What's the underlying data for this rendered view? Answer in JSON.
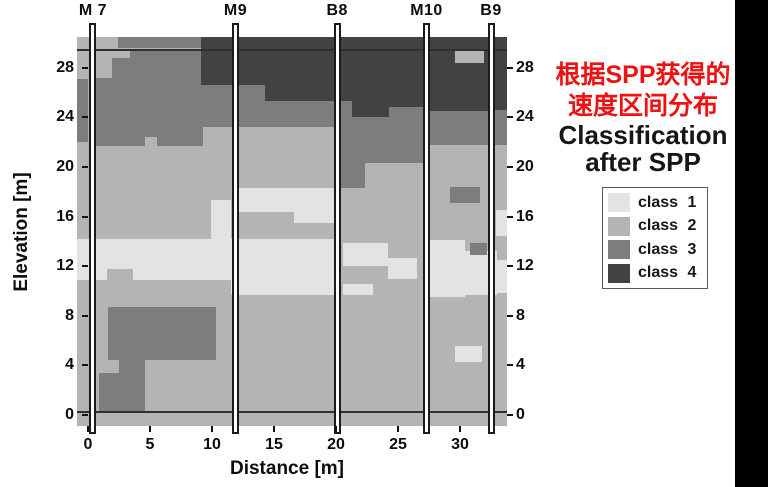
{
  "annotation": {
    "line1": "根据SPP获得的",
    "line2": "速度区间分布",
    "color": "#ee1111"
  },
  "legend": {
    "title_line1": "Classification",
    "title_line2": "after SPP",
    "items": [
      {
        "label": "class 1",
        "color": "#e3e3e3"
      },
      {
        "label": "class 2",
        "color": "#b4b4b4"
      },
      {
        "label": "class 3",
        "color": "#7d7d7d"
      },
      {
        "label": "class 4",
        "color": "#424242"
      }
    ]
  },
  "axes": {
    "xlabel": "Distance [m]",
    "ylabel": "Elevation [m]",
    "x_ticks": [
      0,
      5,
      10,
      15,
      20,
      25,
      30
    ],
    "y_ticks": [
      0,
      4,
      8,
      12,
      16,
      20,
      24,
      28
    ]
  },
  "chart_data": {
    "type": "heatmap",
    "title": "Classification after SPP",
    "xlabel": "Distance [m]",
    "ylabel": "Elevation [m]",
    "xlim": [
      -0.9,
      33.8
    ],
    "ylim": [
      -0.9,
      30.5
    ],
    "grid": false,
    "legend_position": "right",
    "classes": [
      {
        "id": 1,
        "label": "class 1",
        "color": "#e3e3e3"
      },
      {
        "id": 2,
        "label": "class 2",
        "color": "#b4b4b4"
      },
      {
        "id": 3,
        "label": "class 3",
        "color": "#7d7d7d"
      },
      {
        "id": 4,
        "label": "class 4",
        "color": "#424242"
      }
    ],
    "base_class": 2,
    "survey_lines_elev_m": [
      29.55,
      0.35
    ],
    "boreholes": [
      {
        "label": "M 7",
        "x_m": 0.4
      },
      {
        "label": "M9",
        "x_m": 11.9
      },
      {
        "label": "B8",
        "x_m": 20.1
      },
      {
        "label": "M10",
        "x_m": 27.3
      },
      {
        "label": "B9",
        "x_m": 32.5
      }
    ],
    "regions": [
      {
        "class": 3,
        "x": [
          -1.1,
          0.0
        ],
        "elev": [
          22.0,
          27.1
        ]
      },
      {
        "class": 3,
        "x": [
          0.6,
          9.3
        ],
        "elev": [
          21.7,
          29.5
        ]
      },
      {
        "class": 2,
        "x": [
          0.6,
          1.9
        ],
        "elev": [
          27.2,
          29.5
        ]
      },
      {
        "class": 2,
        "x": [
          1.9,
          3.4
        ],
        "elev": [
          28.8,
          29.5
        ]
      },
      {
        "class": 2,
        "x": [
          4.6,
          5.6
        ],
        "elev": [
          21.7,
          22.4
        ]
      },
      {
        "class": 3,
        "x": [
          9.3,
          20.3
        ],
        "elev": [
          23.2,
          28.5
        ]
      },
      {
        "class": 3,
        "x": [
          20.3,
          22.3
        ],
        "elev": [
          18.3,
          26.0
        ]
      },
      {
        "class": 3,
        "x": [
          22.3,
          27.2
        ],
        "elev": [
          20.3,
          26.0
        ]
      },
      {
        "class": 3,
        "x": [
          27.2,
          33.8
        ],
        "elev": [
          21.8,
          26.0
        ]
      },
      {
        "class": 4,
        "x": [
          9.1,
          14.3
        ],
        "elev": [
          26.6,
          30.5
        ]
      },
      {
        "class": 4,
        "x": [
          14.3,
          21.3
        ],
        "elev": [
          25.3,
          30.5
        ]
      },
      {
        "class": 4,
        "x": [
          21.3,
          24.3
        ],
        "elev": [
          24.0,
          30.5
        ]
      },
      {
        "class": 4,
        "x": [
          24.3,
          27.2
        ],
        "elev": [
          24.8,
          30.5
        ]
      },
      {
        "class": 4,
        "x": [
          27.2,
          33.8
        ],
        "elev": [
          24.5,
          30.5
        ]
      },
      {
        "class": 3,
        "x": [
          32.7,
          33.8
        ],
        "elev": [
          22.2,
          24.6
        ]
      },
      {
        "class": 2,
        "x": [
          -1.1,
          2.4
        ],
        "elev": [
          29.6,
          30.5
        ]
      },
      {
        "class": 3,
        "x": [
          2.4,
          9.1
        ],
        "elev": [
          29.6,
          30.5
        ]
      },
      {
        "class": 2,
        "x": [
          29.6,
          31.9
        ],
        "elev": [
          28.4,
          29.4
        ]
      },
      {
        "class": 1,
        "x": [
          -1.1,
          11.5
        ],
        "elev": [
          10.9,
          14.2
        ]
      },
      {
        "class": 1,
        "x": [
          9.9,
          11.5
        ],
        "elev": [
          14.2,
          17.3
        ]
      },
      {
        "class": 2,
        "x": [
          1.5,
          3.6
        ],
        "elev": [
          10.7,
          11.8
        ]
      },
      {
        "class": 1,
        "x": [
          11.5,
          20.3
        ],
        "elev": [
          9.7,
          14.2
        ]
      },
      {
        "class": 1,
        "x": [
          12.1,
          16.6
        ],
        "elev": [
          16.4,
          18.3
        ]
      },
      {
        "class": 1,
        "x": [
          16.6,
          20.3
        ],
        "elev": [
          15.5,
          18.3
        ]
      },
      {
        "class": 1,
        "x": [
          20.6,
          24.2
        ],
        "elev": [
          12.0,
          13.9
        ]
      },
      {
        "class": 1,
        "x": [
          24.2,
          26.5
        ],
        "elev": [
          11.0,
          12.7
        ]
      },
      {
        "class": 1,
        "x": [
          20.6,
          23.0
        ],
        "elev": [
          9.7,
          10.6
        ]
      },
      {
        "class": 1,
        "x": [
          27.5,
          30.4
        ],
        "elev": [
          9.5,
          14.1
        ]
      },
      {
        "class": 1,
        "x": [
          30.4,
          33.0
        ],
        "elev": [
          9.7,
          13.2
        ]
      },
      {
        "class": 3,
        "x": [
          30.8,
          32.2
        ],
        "elev": [
          12.9,
          13.9
        ]
      },
      {
        "class": 1,
        "x": [
          32.9,
          33.8
        ],
        "elev": [
          14.4,
          16.5
        ]
      },
      {
        "class": 1,
        "x": [
          32.9,
          33.8
        ],
        "elev": [
          9.8,
          12.5
        ]
      },
      {
        "class": 3,
        "x": [
          29.2,
          31.6
        ],
        "elev": [
          17.1,
          18.4
        ]
      },
      {
        "class": 3,
        "x": [
          1.6,
          10.3
        ],
        "elev": [
          4.4,
          8.7
        ]
      },
      {
        "class": 3,
        "x": [
          0.9,
          4.6
        ],
        "elev": [
          0.3,
          4.4
        ]
      },
      {
        "class": 2,
        "x": [
          0.8,
          2.5
        ],
        "elev": [
          3.4,
          4.4
        ]
      },
      {
        "class": 1,
        "x": [
          29.6,
          31.8
        ],
        "elev": [
          4.3,
          5.6
        ]
      }
    ],
    "line_color": "#303030"
  }
}
